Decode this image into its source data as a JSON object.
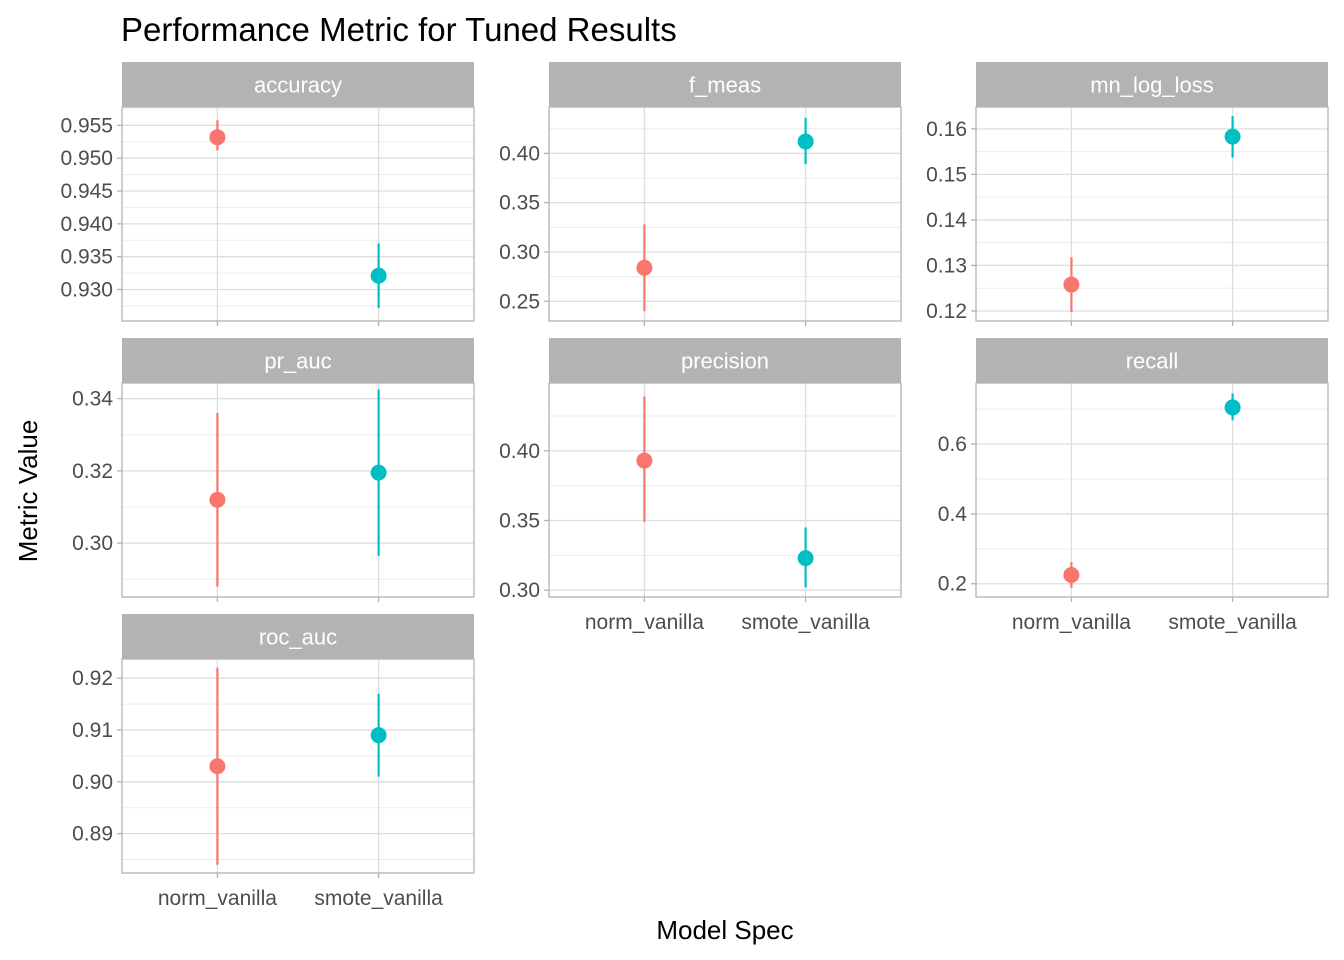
{
  "chart_data": {
    "type": "scatter",
    "title": "Performance Metric for Tuned Results",
    "xlabel": "Model Spec",
    "ylabel": "Metric Value",
    "categories": [
      "norm_vanilla",
      "smote_vanilla"
    ],
    "colors": {
      "norm_vanilla": "#F8766D",
      "smote_vanilla": "#00BFC4"
    },
    "strip_bg": "#b3b3b3",
    "grid": true,
    "legend": "none",
    "facets": [
      {
        "name": "accuracy",
        "ylim": [
          0.9252,
          0.9578
        ],
        "yticks": [
          "0.955",
          "0.950",
          "0.945",
          "0.940",
          "0.935",
          "0.930"
        ],
        "ytick_values": [
          0.955,
          0.95,
          0.945,
          0.94,
          0.935,
          0.93
        ],
        "points": [
          {
            "category": "norm_vanilla",
            "mean": 0.9532,
            "low": 0.9512,
            "high": 0.9558
          },
          {
            "category": "smote_vanilla",
            "mean": 0.9321,
            "low": 0.9272,
            "high": 0.937
          }
        ]
      },
      {
        "name": "f_meas",
        "ylim": [
          0.23,
          0.447
        ],
        "yticks": [
          "0.40",
          "0.35",
          "0.30",
          "0.25"
        ],
        "ytick_values": [
          0.4,
          0.35,
          0.3,
          0.25
        ],
        "points": [
          {
            "category": "norm_vanilla",
            "mean": 0.284,
            "low": 0.24,
            "high": 0.328
          },
          {
            "category": "smote_vanilla",
            "mean": 0.412,
            "low": 0.389,
            "high": 0.436
          }
        ]
      },
      {
        "name": "mn_log_loss",
        "ylim": [
          0.1178,
          0.1648
        ],
        "yticks": [
          "0.16",
          "0.15",
          "0.14",
          "0.13",
          "0.12"
        ],
        "ytick_values": [
          0.16,
          0.15,
          0.14,
          0.13,
          0.12
        ],
        "points": [
          {
            "category": "norm_vanilla",
            "mean": 0.1258,
            "low": 0.1198,
            "high": 0.1318
          },
          {
            "category": "smote_vanilla",
            "mean": 0.1583,
            "low": 0.1537,
            "high": 0.1628
          }
        ]
      },
      {
        "name": "pr_auc",
        "ylim": [
          0.2851,
          0.3443
        ],
        "yticks": [
          "0.34",
          "0.32",
          "0.30"
        ],
        "ytick_values": [
          0.34,
          0.32,
          0.3
        ],
        "points": [
          {
            "category": "norm_vanilla",
            "mean": 0.312,
            "low": 0.288,
            "high": 0.336
          },
          {
            "category": "smote_vanilla",
            "mean": 0.3195,
            "low": 0.2965,
            "high": 0.3425
          }
        ]
      },
      {
        "name": "precision",
        "ylim": [
          0.2951,
          0.4487
        ],
        "yticks": [
          "0.40",
          "0.35",
          "0.30"
        ],
        "ytick_values": [
          0.4,
          0.35,
          0.3
        ],
        "points": [
          {
            "category": "norm_vanilla",
            "mean": 0.393,
            "low": 0.349,
            "high": 0.439
          },
          {
            "category": "smote_vanilla",
            "mean": 0.323,
            "low": 0.302,
            "high": 0.345
          }
        ]
      },
      {
        "name": "recall",
        "ylim": [
          0.162,
          0.775
        ],
        "yticks": [
          "0.6",
          "0.4",
          "0.2"
        ],
        "ytick_values": [
          0.6,
          0.4,
          0.2
        ],
        "points": [
          {
            "category": "norm_vanilla",
            "mean": 0.225,
            "low": 0.188,
            "high": 0.262
          },
          {
            "category": "smote_vanilla",
            "mean": 0.705,
            "low": 0.668,
            "high": 0.745
          }
        ]
      },
      {
        "name": "roc_auc",
        "ylim": [
          0.8824,
          0.9237
        ],
        "yticks": [
          "0.92",
          "0.91",
          "0.90",
          "0.89"
        ],
        "ytick_values": [
          0.92,
          0.91,
          0.9,
          0.89
        ],
        "points": [
          {
            "category": "norm_vanilla",
            "mean": 0.903,
            "low": 0.884,
            "high": 0.922
          },
          {
            "category": "smote_vanilla",
            "mean": 0.909,
            "low": 0.901,
            "high": 0.917
          }
        ]
      }
    ]
  }
}
